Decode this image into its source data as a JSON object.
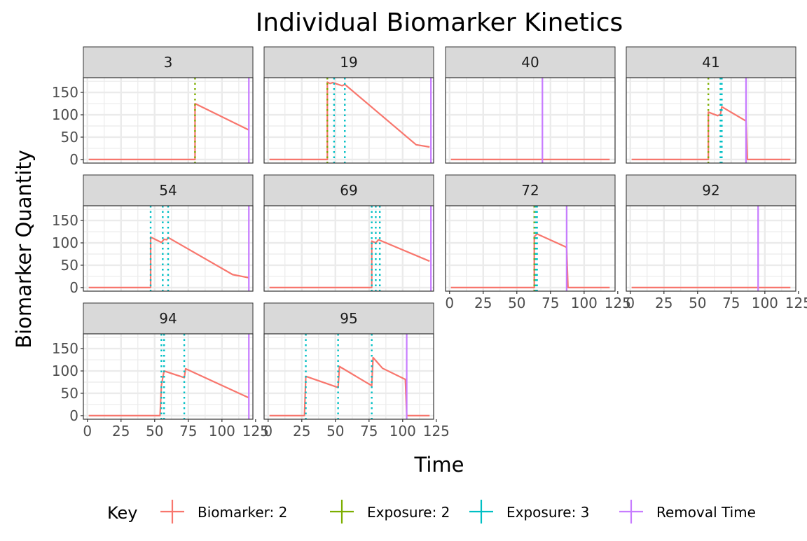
{
  "chart_data": {
    "type": "line",
    "title": "Individual Biomarker Kinetics",
    "xlabel": "Time",
    "ylabel": "Biomarker Quantity",
    "xlim": [
      -3,
      123
    ],
    "ylim": [
      -8,
      183
    ],
    "x_ticks": [
      0,
      25,
      50,
      75,
      100,
      125
    ],
    "x_tick_labels": [
      "0",
      "25",
      "50",
      "75",
      "100",
      "125"
    ],
    "y_ticks": [
      0,
      50,
      100,
      150
    ],
    "y_tick_labels": [
      "0",
      "50",
      "100",
      "150"
    ],
    "grid": true,
    "legend": {
      "title": "Key",
      "position": "bottom",
      "entries": [
        {
          "label": "Biomarker: 2",
          "color": "#F8766D"
        },
        {
          "label": "Exposure: 2",
          "color": "#7CAE00"
        },
        {
          "label": "Exposure: 3",
          "color": "#00BFC4"
        },
        {
          "label": "Removal Time",
          "color": "#C77CFF"
        }
      ]
    },
    "colors": {
      "biomarker": "#F8766D",
      "exposure2": "#7CAE00",
      "exposure3": "#00BFC4",
      "removal": "#C77CFF",
      "strip_fill": "#D9D9D9",
      "grid": "#EBEBEB"
    },
    "panels": [
      {
        "id": "3",
        "biomarker": [
          [
            1,
            0
          ],
          [
            80,
            0
          ],
          [
            80,
            125
          ],
          [
            120,
            66
          ]
        ],
        "exposure2": [
          80
        ],
        "exposure3": [],
        "removal": 120
      },
      {
        "id": "19",
        "biomarker": [
          [
            1,
            0
          ],
          [
            44,
            0
          ],
          [
            44,
            173
          ],
          [
            46,
            170
          ],
          [
            48,
            172
          ],
          [
            55,
            165
          ],
          [
            57,
            168
          ],
          [
            110,
            33
          ],
          [
            120,
            28
          ]
        ],
        "exposure2": [
          44
        ],
        "exposure3": [
          49,
          57
        ],
        "removal": 121
      },
      {
        "id": "40",
        "biomarker": [
          [
            1,
            0
          ],
          [
            119,
            0
          ]
        ],
        "exposure2": [],
        "exposure3": [],
        "removal": 69
      },
      {
        "id": "41",
        "biomarker": [
          [
            1,
            0
          ],
          [
            58,
            0
          ],
          [
            58,
            106
          ],
          [
            65,
            98
          ],
          [
            67,
            101
          ],
          [
            68,
            118
          ],
          [
            86,
            86
          ],
          [
            87,
            0
          ],
          [
            119,
            0
          ]
        ],
        "exposure2": [
          58
        ],
        "exposure3": [
          67,
          68
        ],
        "removal": 86
      },
      {
        "id": "54",
        "biomarker": [
          [
            1,
            0
          ],
          [
            47,
            0
          ],
          [
            47,
            113
          ],
          [
            55,
            101
          ],
          [
            57,
            108
          ],
          [
            59,
            107
          ],
          [
            60,
            112
          ],
          [
            108,
            29
          ],
          [
            120,
            22
          ]
        ],
        "exposure2": [],
        "exposure3": [
          47,
          56,
          60
        ],
        "removal": 120
      },
      {
        "id": "69",
        "biomarker": [
          [
            1,
            0
          ],
          [
            77,
            0
          ],
          [
            77,
            104
          ],
          [
            80,
            100
          ],
          [
            82,
            107
          ],
          [
            120,
            59
          ]
        ],
        "exposure2": [],
        "exposure3": [
          77,
          80,
          83
        ],
        "removal": 121
      },
      {
        "id": "72",
        "biomarker": [
          [
            1,
            0
          ],
          [
            63,
            0
          ],
          [
            63,
            114
          ],
          [
            65,
            120
          ],
          [
            87,
            90
          ],
          [
            88,
            0
          ],
          [
            119,
            0
          ]
        ],
        "exposure2": [
          63
        ],
        "exposure3": [
          64,
          65
        ],
        "removal": 87
      },
      {
        "id": "92",
        "biomarker": [
          [
            1,
            0
          ],
          [
            119,
            0
          ]
        ],
        "exposure2": [],
        "exposure3": [],
        "removal": 95
      },
      {
        "id": "94",
        "biomarker": [
          [
            1,
            0
          ],
          [
            54,
            0
          ],
          [
            55,
            68
          ],
          [
            57,
            100
          ],
          [
            72,
            85
          ],
          [
            73,
            105
          ],
          [
            120,
            40
          ]
        ],
        "exposure2": [],
        "exposure3": [
          55,
          57,
          72
        ],
        "removal": 120
      },
      {
        "id": "95",
        "biomarker": [
          [
            1,
            0
          ],
          [
            27,
            0
          ],
          [
            28,
            88
          ],
          [
            52,
            63
          ],
          [
            53,
            110
          ],
          [
            77,
            67
          ],
          [
            78,
            130
          ],
          [
            85,
            106
          ],
          [
            102,
            81
          ],
          [
            103,
            0
          ],
          [
            120,
            0
          ]
        ],
        "exposure2": [],
        "exposure3": [
          28,
          52,
          77
        ],
        "removal": 103
      }
    ]
  }
}
